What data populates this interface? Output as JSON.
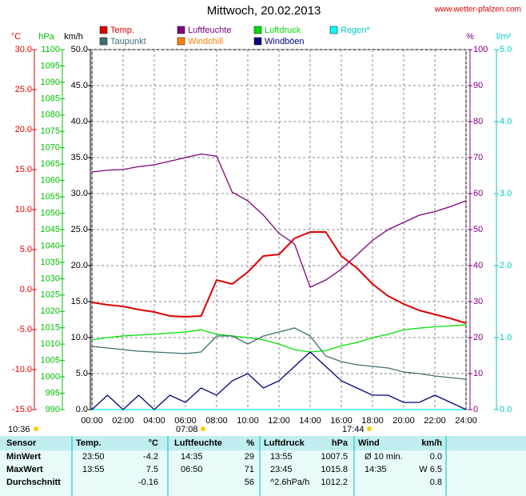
{
  "chart_data": {
    "type": "line",
    "title": "Mittwoch, 20.02.2013",
    "source": "www.wetter-pfalzen.com",
    "xlim": [
      0,
      24
    ],
    "xticks": [
      {
        "value": 0,
        "label": "00:00"
      },
      {
        "value": 2,
        "label": "02:00"
      },
      {
        "value": 4,
        "label": "04:00"
      },
      {
        "value": 6,
        "label": "06:00"
      },
      {
        "value": 8,
        "label": "08:00"
      },
      {
        "value": 10,
        "label": "10:00"
      },
      {
        "value": 12,
        "label": "12:00"
      },
      {
        "value": 14,
        "label": "14:00"
      },
      {
        "value": 16,
        "label": "16:00"
      },
      {
        "value": 18,
        "label": "18:00"
      },
      {
        "value": 20,
        "label": "20:00"
      },
      {
        "value": 22,
        "label": "22:00"
      },
      {
        "value": 24,
        "label": "24:00"
      }
    ],
    "grid": true,
    "axes": [
      {
        "unit": "°C",
        "color": "#e00000",
        "lim": [
          -15,
          30
        ],
        "ticks": [
          {
            "value": 30,
            "label": "30.0"
          },
          {
            "value": 25,
            "label": "25.0"
          },
          {
            "value": 20,
            "label": "20.0"
          },
          {
            "value": 15,
            "label": "15.0"
          },
          {
            "value": 10,
            "label": "10.0"
          },
          {
            "value": 5,
            "label": "5.0"
          },
          {
            "value": 0,
            "label": "0.0"
          },
          {
            "value": -5,
            "label": "-5.0"
          },
          {
            "value": -10,
            "label": "-10.0"
          },
          {
            "value": -15,
            "label": "-15.0"
          }
        ]
      },
      {
        "unit": "hPa",
        "color": "#00c000",
        "lim": [
          990,
          1100
        ],
        "ticks": [
          1100,
          1095,
          1090,
          1085,
          1080,
          1075,
          1070,
          1065,
          1060,
          1055,
          1050,
          1045,
          1040,
          1035,
          1030,
          1025,
          1020,
          1015,
          1010,
          1005,
          1000,
          995,
          990
        ]
      },
      {
        "unit": "km/h",
        "color": "#000000",
        "lim": [
          0,
          50
        ],
        "ticks": [
          {
            "value": 50,
            "label": "50.0"
          },
          {
            "value": 45,
            "label": "45.0"
          },
          {
            "value": 40,
            "label": "40.0"
          },
          {
            "value": 35,
            "label": "35.0"
          },
          {
            "value": 30,
            "label": "30.0"
          },
          {
            "value": 25,
            "label": "25.0"
          },
          {
            "value": 20,
            "label": "20.0"
          },
          {
            "value": 15,
            "label": "15.0"
          },
          {
            "value": 10,
            "label": "10.0"
          },
          {
            "value": 5,
            "label": "5.0"
          },
          {
            "value": 0,
            "label": "0.0"
          }
        ]
      },
      {
        "unit": "%",
        "color": "#800080",
        "lim": [
          0,
          100
        ],
        "ticks": [
          100,
          90,
          80,
          70,
          60,
          50,
          40,
          30,
          20,
          10,
          0
        ]
      },
      {
        "unit": "l/m²",
        "color": "#00c8c8",
        "lim": [
          0,
          5
        ],
        "ticks": [
          {
            "value": 5,
            "label": "5.0"
          },
          {
            "value": 4,
            "label": "4.0"
          },
          {
            "value": 3,
            "label": "3.0"
          },
          {
            "value": 2,
            "label": "2.0"
          },
          {
            "value": 1,
            "label": "1.0"
          },
          {
            "value": 0,
            "label": "0.0"
          }
        ]
      }
    ],
    "x": [
      0,
      1,
      2,
      3,
      4,
      5,
      6,
      7,
      8,
      9,
      10,
      11,
      12,
      13,
      14,
      15,
      16,
      17,
      18,
      19,
      20,
      21,
      22,
      23,
      24
    ],
    "series": [
      {
        "name": "Temp.",
        "color": "#e00000",
        "axis": 0,
        "values": [
          -1.6,
          -1.9,
          -2.1,
          -2.5,
          -2.8,
          -3.3,
          -3.4,
          -3.3,
          1.2,
          0.7,
          2.2,
          4.2,
          4.4,
          6.4,
          7.2,
          7.2,
          4.2,
          2.7,
          0.7,
          -0.8,
          -1.8,
          -2.6,
          -3.1,
          -3.6,
          -4.2
        ]
      },
      {
        "name": "Luftfeuchte",
        "color": "#800080",
        "axis": 3,
        "values": [
          66,
          66.5,
          66.7,
          67.5,
          68,
          69,
          70,
          71,
          70.4,
          60.4,
          58,
          54,
          49,
          46,
          34,
          36,
          39,
          43,
          47,
          50,
          52,
          54,
          55,
          56.4,
          58
        ]
      },
      {
        "name": "Luftdruck",
        "color": "#00e000",
        "axis": 1,
        "values": [
          1011.3,
          1012,
          1012.5,
          1012.8,
          1013,
          1013.4,
          1013.7,
          1014.4,
          1013,
          1012.5,
          1012,
          1011.3,
          1010,
          1008.3,
          1007.6,
          1008,
          1009.5,
          1010.5,
          1012,
          1013,
          1014.4,
          1014.9,
          1015.3,
          1015.6,
          1015.9
        ]
      },
      {
        "name": "Regen*",
        "color": "#00ffff",
        "axis": 4,
        "values": [
          0,
          0,
          0,
          0,
          0,
          0,
          0,
          0,
          0,
          0,
          0,
          0,
          0,
          0,
          0,
          0,
          0,
          0,
          0,
          0,
          0,
          0,
          0,
          0,
          0
        ]
      },
      {
        "name": "Taupunkt",
        "color": "#407070",
        "axis": 0,
        "values": [
          -7.1,
          -7.3,
          -7.5,
          -7.7,
          -7.8,
          -7.9,
          -8,
          -7.8,
          -5.8,
          -5.8,
          -6.8,
          -5.8,
          -5.3,
          -4.8,
          -5.8,
          -8.3,
          -9,
          -9.4,
          -9.6,
          -9.8,
          -10.3,
          -10.5,
          -10.8,
          -11,
          -11.2
        ]
      },
      {
        "name": "Windchill",
        "color": "#ff8000",
        "axis": 0,
        "values": [
          null,
          null,
          null,
          null,
          null,
          null,
          null,
          null,
          null,
          null,
          null,
          null,
          null,
          null,
          null,
          null,
          null,
          null,
          null,
          null,
          null,
          null,
          null,
          null,
          null
        ]
      },
      {
        "name": "Windböen",
        "color": "#000080",
        "axis": 2,
        "values": [
          0,
          2,
          0,
          2,
          0,
          2,
          1,
          3,
          2,
          4,
          5,
          3,
          4,
          6,
          8,
          6,
          4,
          3,
          2,
          2,
          1,
          1,
          2,
          1,
          0
        ]
      }
    ],
    "now": "10:36",
    "sunrise": "07:08",
    "sunset": "17:44"
  },
  "table": {
    "header": [
      "Sensor",
      "Temp.",
      "°C",
      "Luftfeuchte",
      "%",
      "Luftdruck",
      "hPa",
      "Wind",
      "km/h"
    ],
    "rows": [
      [
        "MinWert",
        "23:50",
        "-4.2",
        "14:35",
        "29",
        "13:55",
        "1007.5",
        "Ø 10 min.",
        "0.0"
      ],
      [
        "MaxWert",
        "13:55",
        "7.5",
        "06:50",
        "71",
        "23:45",
        "1015.8",
        "14:35",
        "W 6.5"
      ],
      [
        "Durchschnitt",
        null,
        "-0.16",
        null,
        "56",
        "^2.6hPa/h",
        "1012.2",
        null,
        "0.8"
      ]
    ]
  }
}
